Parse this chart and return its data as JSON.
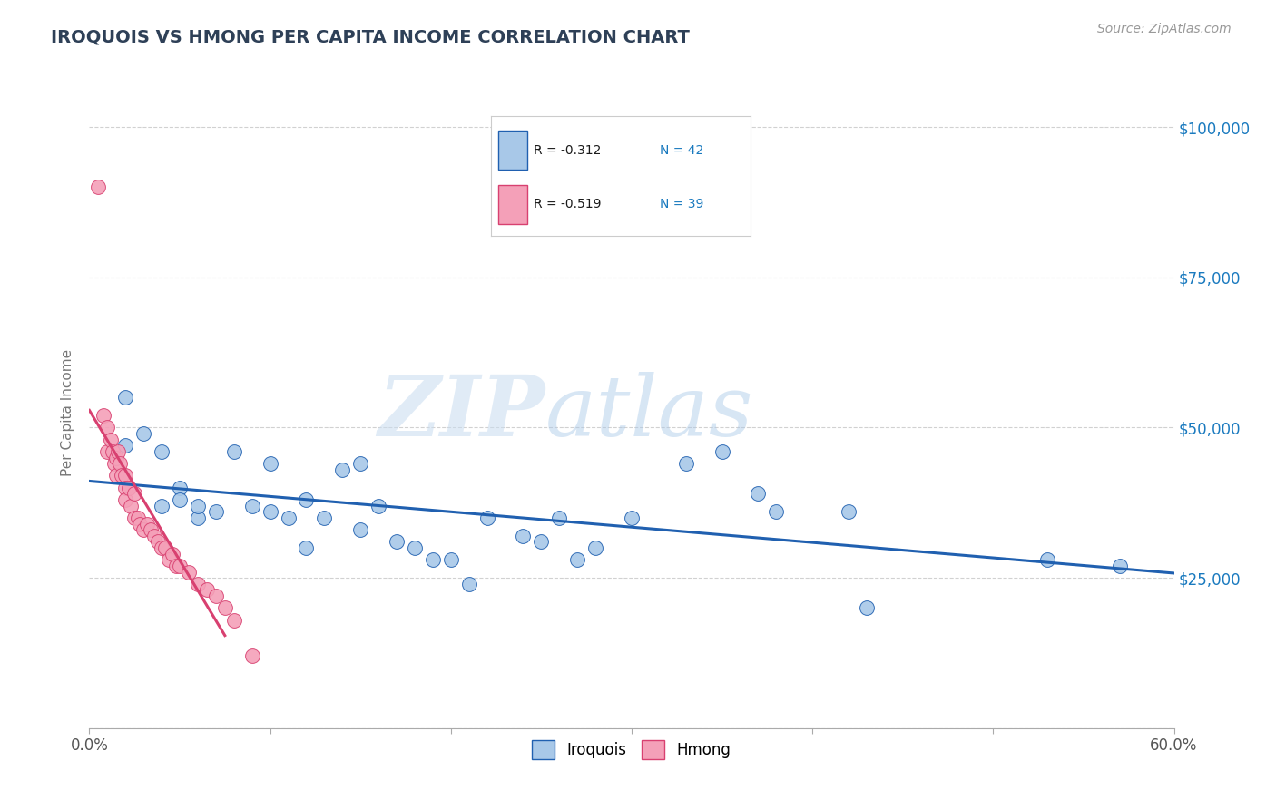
{
  "title": "IROQUOIS VS HMONG PER CAPITA INCOME CORRELATION CHART",
  "source": "Source: ZipAtlas.com",
  "xlabel": "",
  "ylabel": "Per Capita Income",
  "xlim": [
    0.0,
    0.6
  ],
  "ylim": [
    0,
    105000
  ],
  "yticks": [
    0,
    25000,
    50000,
    75000,
    100000
  ],
  "ytick_labels": [
    "",
    "$25,000",
    "$50,000",
    "$75,000",
    "$100,000"
  ],
  "xtick_labels": [
    "0.0%",
    "",
    "",
    "",
    "",
    "",
    "60.0%"
  ],
  "xticks": [
    0.0,
    0.1,
    0.2,
    0.3,
    0.4,
    0.5,
    0.6
  ],
  "legend_r_blue": "R = -0.312",
  "legend_n_blue": "N = 42",
  "legend_r_pink": "R = -0.519",
  "legend_n_pink": "N = 39",
  "legend_label_blue": "Iroquois",
  "legend_label_pink": "Hmong",
  "blue_color": "#A8C8E8",
  "pink_color": "#F4A0B8",
  "blue_line_color": "#2060B0",
  "pink_line_color": "#D84070",
  "title_color": "#2E4057",
  "axis_label_color": "#777777",
  "tick_color_right": "#1a7abf",
  "watermark_zip": "ZIP",
  "watermark_atlas": "atlas",
  "background_color": "#FFFFFF",
  "grid_color": "#CCCCCC",
  "iroquois_x": [
    0.02,
    0.02,
    0.03,
    0.04,
    0.04,
    0.05,
    0.05,
    0.06,
    0.06,
    0.07,
    0.08,
    0.09,
    0.1,
    0.1,
    0.11,
    0.12,
    0.13,
    0.14,
    0.15,
    0.16,
    0.17,
    0.18,
    0.19,
    0.2,
    0.21,
    0.22,
    0.24,
    0.25,
    0.26,
    0.27,
    0.28,
    0.3,
    0.33,
    0.37,
    0.38,
    0.42,
    0.53,
    0.57,
    0.15,
    0.12,
    0.35,
    0.43
  ],
  "iroquois_y": [
    47000,
    55000,
    49000,
    46000,
    37000,
    40000,
    38000,
    35000,
    37000,
    36000,
    46000,
    37000,
    44000,
    36000,
    35000,
    38000,
    35000,
    43000,
    44000,
    37000,
    31000,
    30000,
    28000,
    28000,
    24000,
    35000,
    32000,
    31000,
    35000,
    28000,
    30000,
    35000,
    44000,
    39000,
    36000,
    36000,
    28000,
    27000,
    33000,
    30000,
    46000,
    20000
  ],
  "hmong_x": [
    0.005,
    0.008,
    0.01,
    0.01,
    0.012,
    0.013,
    0.014,
    0.015,
    0.015,
    0.016,
    0.017,
    0.018,
    0.02,
    0.02,
    0.02,
    0.022,
    0.023,
    0.025,
    0.025,
    0.027,
    0.028,
    0.03,
    0.032,
    0.034,
    0.036,
    0.038,
    0.04,
    0.042,
    0.044,
    0.046,
    0.048,
    0.05,
    0.055,
    0.06,
    0.065,
    0.07,
    0.075,
    0.08,
    0.09
  ],
  "hmong_y": [
    90000,
    52000,
    50000,
    46000,
    48000,
    46000,
    44000,
    45000,
    42000,
    46000,
    44000,
    42000,
    42000,
    40000,
    38000,
    40000,
    37000,
    39000,
    35000,
    35000,
    34000,
    33000,
    34000,
    33000,
    32000,
    31000,
    30000,
    30000,
    28000,
    29000,
    27000,
    27000,
    26000,
    24000,
    23000,
    22000,
    20000,
    18000,
    12000
  ]
}
